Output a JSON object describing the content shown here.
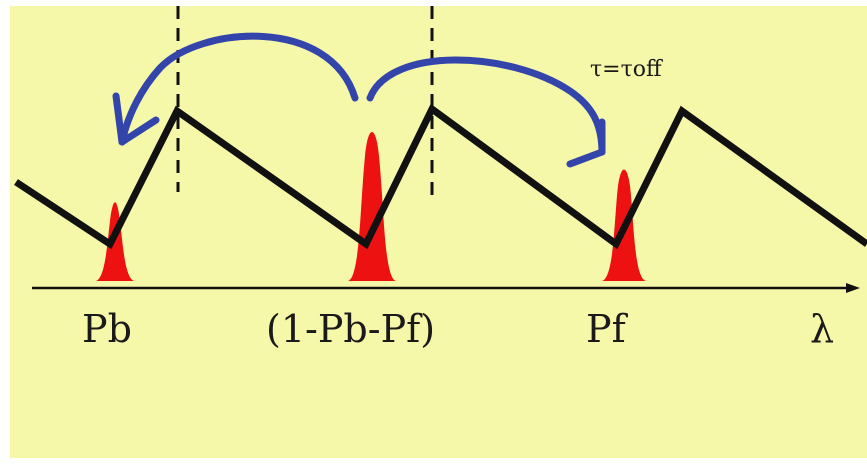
{
  "colors": {
    "background": "#f5f8a8",
    "sawtooth": "#111111",
    "peak_fill": "#ee1111",
    "arrow": "#3344aa",
    "dashed": "#111111"
  },
  "annotation": "τ=τoff",
  "labels": {
    "pb": "Pb",
    "center": "(1-Pb-Pf)",
    "pf": "Pf",
    "axis": "λ"
  }
}
